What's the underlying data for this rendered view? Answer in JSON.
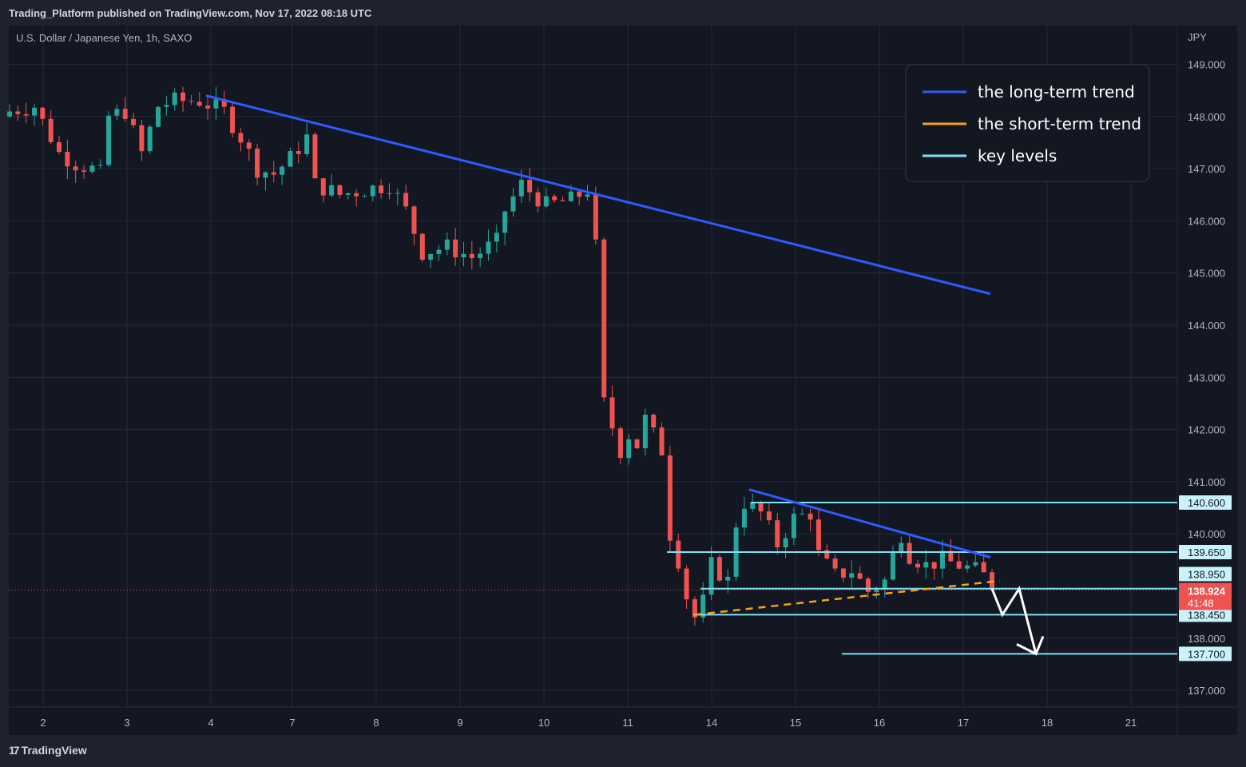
{
  "header": {
    "published": "Trading_Platform published on TradingView.com, Nov 17, 2022 08:18 UTC"
  },
  "symbol": {
    "title": "U.S. Dollar / Japanese Yen, 1h, SAXO",
    "currency": "JPY"
  },
  "footer": {
    "brand": "TradingView"
  },
  "legend": {
    "items": [
      {
        "label": "the long-term trend",
        "color": "#2e5bff"
      },
      {
        "label": "the short-term trend",
        "color": "#f7a21b"
      },
      {
        "label": "key levels",
        "color": "#7fe0f5"
      }
    ]
  },
  "colors": {
    "up": "#26a69a",
    "down": "#ef5350",
    "background": "#131722",
    "grid": "#262b38"
  },
  "chart_data": {
    "type": "candlestick",
    "title": "U.S. Dollar / Japanese Yen, 1h, SAXO",
    "y_unit": "JPY",
    "ylim": [
      136.5,
      149.5
    ],
    "y_ticks": [
      "149.000",
      "148.000",
      "147.000",
      "146.000",
      "145.000",
      "144.000",
      "143.000",
      "142.000",
      "141.000",
      "140.000",
      "138.000",
      "137.000"
    ],
    "x_ticks": [
      "2",
      "3",
      "4",
      "7",
      "8",
      "9",
      "10",
      "11",
      "14",
      "15",
      "16",
      "17",
      "18",
      "21"
    ],
    "grid": true,
    "price_path": [
      [
        0,
        148.1
      ],
      [
        3,
        148.2
      ],
      [
        6,
        147.3
      ],
      [
        8,
        147.1
      ],
      [
        10,
        147.0
      ],
      [
        11,
        146.9
      ],
      [
        12,
        148.0
      ],
      [
        14,
        148.1
      ],
      [
        16,
        147.3
      ],
      [
        18,
        148.2
      ],
      [
        20,
        148.3
      ],
      [
        23,
        148.3
      ],
      [
        26,
        148.1
      ],
      [
        28,
        147.6
      ],
      [
        30,
        147.0
      ],
      [
        32,
        146.9
      ],
      [
        34,
        147.2
      ],
      [
        36,
        147.6
      ],
      [
        37,
        146.7
      ],
      [
        40,
        146.5
      ],
      [
        43,
        146.6
      ],
      [
        46,
        146.7
      ],
      [
        48,
        146.2
      ],
      [
        50,
        145.4
      ],
      [
        53,
        145.5
      ],
      [
        56,
        145.3
      ],
      [
        59,
        145.6
      ],
      [
        60,
        146.2
      ],
      [
        62,
        146.7
      ],
      [
        65,
        146.3
      ],
      [
        68,
        146.4
      ],
      [
        70,
        146.6
      ],
      [
        71,
        145.5
      ],
      [
        72,
        142.5
      ],
      [
        74,
        141.6
      ],
      [
        75,
        141.9
      ],
      [
        76,
        141.7
      ],
      [
        77,
        142.2
      ],
      [
        79,
        141.6
      ],
      [
        80,
        140.0
      ],
      [
        81,
        139.5
      ],
      [
        82,
        138.8
      ],
      [
        83,
        138.4
      ],
      [
        84,
        138.7
      ],
      [
        85,
        139.4
      ],
      [
        87,
        139.1
      ],
      [
        88,
        140.2
      ],
      [
        89,
        140.6
      ],
      [
        91,
        140.4
      ],
      [
        93,
        139.8
      ],
      [
        95,
        140.3
      ],
      [
        97,
        140.4
      ],
      [
        98,
        139.6
      ],
      [
        100,
        139.2
      ],
      [
        102,
        139.3
      ],
      [
        104,
        138.9
      ],
      [
        106,
        139.1
      ],
      [
        107,
        139.6
      ],
      [
        108,
        140.0
      ],
      [
        109,
        139.6
      ],
      [
        111,
        139.4
      ],
      [
        113,
        139.5
      ],
      [
        115,
        139.4
      ],
      [
        117,
        139.3
      ],
      [
        118,
        139.2
      ],
      [
        119,
        138.924
      ]
    ],
    "current_price": "138.924",
    "countdown": "41:48",
    "key_levels": [
      {
        "price": 140.6,
        "label": "140.600"
      },
      {
        "price": 139.65,
        "label": "139.650"
      },
      {
        "price": 138.95,
        "label": "138.950"
      },
      {
        "price": 138.45,
        "label": "138.450"
      },
      {
        "price": 137.7,
        "label": "137.700"
      }
    ],
    "long_term_trend": [
      [
        "Nov 4",
        148.4
      ],
      [
        "Nov 17",
        144.6
      ]
    ],
    "local_downtrend": [
      [
        "Nov 14",
        140.85
      ],
      [
        "Nov 17",
        139.55
      ]
    ],
    "short_term_trend": [
      [
        "Nov 14",
        138.45
      ],
      [
        "Nov 17",
        139.1
      ]
    ],
    "projection": [
      138.95,
      138.45,
      138.95,
      137.7
    ]
  }
}
